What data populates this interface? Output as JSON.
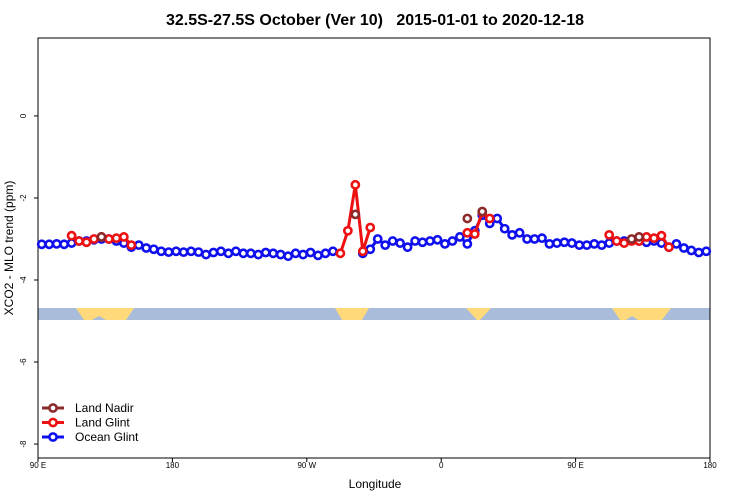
{
  "chart_data": {
    "type": "line",
    "title": "32.5S-27.5S October (Ver 10)   2015-01-01 to 2020-12-18",
    "xlabel": "Longitude",
    "ylabel": "XCO2 - MLO trend (ppm)",
    "x": [
      92.5,
      97.5,
      102.5,
      107.5,
      112.5,
      117.5,
      122.5,
      127.5,
      132.5,
      137.5,
      142.5,
      147.5,
      152.5,
      157.5,
      162.5,
      167.5,
      172.5,
      177.5,
      182.5,
      187.5,
      192.5,
      197.5,
      202.5,
      207.5,
      212.5,
      217.5,
      222.5,
      227.5,
      232.5,
      237.5,
      242.5,
      247.5,
      252.5,
      257.5,
      262.5,
      267.5,
      272.5,
      277.5,
      282.5,
      287.5,
      292.5,
      297.5,
      302.5,
      307.5,
      312.5,
      317.5,
      322.5,
      327.5,
      332.5,
      337.5,
      342.5,
      347.5,
      352.5,
      357.5,
      362.5,
      367.5,
      372.5,
      377.5,
      382.5,
      387.5,
      392.5,
      397.5,
      402.5,
      407.5,
      412.5,
      417.5,
      422.5,
      427.5,
      432.5,
      437.5,
      442.5,
      447.5,
      452.5,
      457.5,
      462.5,
      467.5,
      472.5,
      477.5,
      482.5,
      487.5,
      492.5,
      497.5,
      502.5,
      507.5,
      512.5,
      517.5,
      522.5,
      527.5,
      532.5,
      537.5
    ],
    "series": [
      {
        "name": "Land Nadir",
        "color": "#8b2a2a",
        "values": [
          null,
          null,
          null,
          null,
          null,
          null,
          null,
          null,
          -2.95,
          null,
          null,
          null,
          null,
          null,
          null,
          null,
          null,
          null,
          null,
          null,
          null,
          null,
          null,
          null,
          null,
          null,
          null,
          null,
          null,
          null,
          null,
          null,
          null,
          null,
          null,
          null,
          null,
          null,
          null,
          null,
          null,
          null,
          -2.4,
          null,
          null,
          null,
          null,
          null,
          null,
          null,
          null,
          null,
          null,
          null,
          null,
          null,
          null,
          -2.5,
          null,
          -2.33,
          null,
          null,
          null,
          null,
          null,
          null,
          null,
          null,
          null,
          null,
          null,
          null,
          null,
          null,
          null,
          null,
          null,
          null,
          null,
          -3.0,
          -2.95,
          null,
          null,
          null,
          null,
          null,
          null,
          null,
          null,
          null
        ]
      },
      {
        "name": "Land Glint",
        "color": "#ee1111",
        "values": [
          null,
          null,
          null,
          null,
          -2.92,
          -3.05,
          -3.08,
          -3.0,
          -2.95,
          -3.0,
          -2.98,
          -2.95,
          -3.15,
          null,
          null,
          null,
          null,
          null,
          null,
          null,
          null,
          null,
          null,
          null,
          null,
          null,
          null,
          null,
          null,
          null,
          null,
          null,
          null,
          null,
          null,
          null,
          null,
          null,
          null,
          null,
          -3.35,
          -2.8,
          -1.68,
          -3.3,
          -2.72,
          null,
          null,
          null,
          null,
          null,
          null,
          null,
          null,
          null,
          null,
          null,
          null,
          -2.85,
          -2.88,
          -2.35,
          -2.5,
          null,
          null,
          null,
          null,
          null,
          null,
          null,
          null,
          null,
          null,
          null,
          null,
          null,
          null,
          null,
          -2.9,
          -3.05,
          -3.1,
          -3.05,
          -3.05,
          -2.95,
          -2.98,
          -2.92,
          -3.2,
          null,
          null,
          null,
          null,
          null
        ]
      },
      {
        "name": "Ocean Glint",
        "color": "#1010ee",
        "values": [
          -3.13,
          -3.13,
          -3.12,
          -3.13,
          -3.1,
          -3.05,
          -3.05,
          -3.02,
          -3.0,
          -3.0,
          -3.05,
          -3.1,
          -3.2,
          -3.15,
          -3.22,
          -3.25,
          -3.3,
          -3.32,
          -3.3,
          -3.32,
          -3.3,
          -3.32,
          -3.38,
          -3.33,
          -3.3,
          -3.35,
          -3.3,
          -3.35,
          -3.35,
          -3.38,
          -3.33,
          -3.35,
          -3.38,
          -3.42,
          -3.35,
          -3.38,
          -3.33,
          -3.4,
          -3.35,
          -3.3,
          null,
          null,
          null,
          -3.35,
          -3.25,
          -3.0,
          -3.15,
          -3.05,
          -3.1,
          -3.2,
          -3.05,
          -3.08,
          -3.05,
          -3.02,
          -3.12,
          -3.05,
          -2.95,
          -3.12,
          -2.8,
          -2.42,
          -2.62,
          -2.5,
          -2.75,
          -2.9,
          -2.85,
          -3.0,
          -3.0,
          -2.98,
          -3.12,
          -3.1,
          -3.08,
          -3.1,
          -3.15,
          -3.15,
          -3.12,
          -3.15,
          -3.1,
          -3.05,
          -3.05,
          -3.02,
          -3.05,
          -3.08,
          -3.05,
          -3.1,
          -3.2,
          -3.12,
          -3.22,
          -3.28,
          -3.33,
          -3.3
        ]
      }
    ],
    "xlim": [
      90,
      540
    ],
    "xticks": [
      {
        "value": 90,
        "label": "90 E"
      },
      180,
      {
        "value": 270,
        "label": "90 W"
      },
      {
        "value": 360,
        "label": "0"
      },
      {
        "value": 450,
        "label": "90 E"
      },
      {
        "value": 540,
        "label": "180"
      }
    ],
    "ylim": [
      -8.34,
      1.9
    ],
    "yticks": [
      0,
      -2,
      -4,
      -6,
      -8
    ],
    "legend": "bottom-left"
  }
}
